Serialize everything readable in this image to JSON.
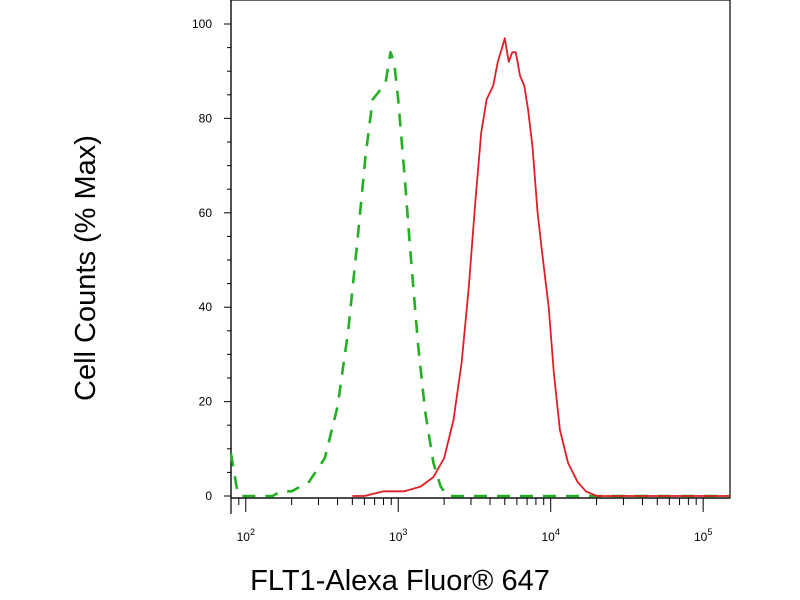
{
  "chart_data": {
    "type": "line",
    "title": "",
    "xlabel": "FLT1-Alexa Fluor® 647",
    "ylabel": "Cell Counts (% Max)",
    "x_scale": "log",
    "xlim": [
      80,
      150000
    ],
    "ylim": [
      0,
      100
    ],
    "grid": false,
    "y_ticks": [
      {
        "value": 0,
        "label": "0"
      },
      {
        "value": 20,
        "label": "20"
      },
      {
        "value": 40,
        "label": "40"
      },
      {
        "value": 60,
        "label": "60"
      },
      {
        "value": 80,
        "label": "80"
      },
      {
        "value": 100,
        "label": "100"
      }
    ],
    "x_ticks": [
      {
        "value": 100,
        "base": "10",
        "exp": "2"
      },
      {
        "value": 1000,
        "base": "10",
        "exp": "3"
      },
      {
        "value": 10000,
        "base": "10",
        "exp": "4"
      },
      {
        "value": 100000,
        "base": "10",
        "exp": "5"
      }
    ],
    "series": [
      {
        "color": "#22b022",
        "style": "dashed",
        "points": [
          [
            80,
            9
          ],
          [
            84,
            5
          ],
          [
            88,
            1
          ],
          [
            92,
            0
          ],
          [
            120,
            0
          ],
          [
            150,
            0
          ],
          [
            170,
            1
          ],
          [
            200,
            1
          ],
          [
            260,
            3
          ],
          [
            330,
            8
          ],
          [
            400,
            19
          ],
          [
            470,
            35
          ],
          [
            540,
            54
          ],
          [
            610,
            72
          ],
          [
            680,
            84
          ],
          [
            760,
            86
          ],
          [
            830,
            88
          ],
          [
            890,
            94
          ],
          [
            940,
            92
          ],
          [
            1000,
            84
          ],
          [
            1100,
            68
          ],
          [
            1200,
            52
          ],
          [
            1350,
            32
          ],
          [
            1500,
            18
          ],
          [
            1700,
            7
          ],
          [
            1900,
            2
          ],
          [
            2100,
            0
          ],
          [
            2600,
            0
          ],
          [
            5000,
            0
          ],
          [
            7000,
            0
          ],
          [
            150000,
            0
          ]
        ]
      },
      {
        "color": "#dd1f26",
        "style": "solid",
        "points": [
          [
            500,
            0
          ],
          [
            600,
            0
          ],
          [
            800,
            1
          ],
          [
            1100,
            1
          ],
          [
            1400,
            2
          ],
          [
            1700,
            4
          ],
          [
            2000,
            8
          ],
          [
            2300,
            16
          ],
          [
            2600,
            28
          ],
          [
            2900,
            44
          ],
          [
            3200,
            62
          ],
          [
            3500,
            77
          ],
          [
            3800,
            84
          ],
          [
            4200,
            87
          ],
          [
            4500,
            92
          ],
          [
            4800,
            95
          ],
          [
            5000,
            97
          ],
          [
            5300,
            92
          ],
          [
            5600,
            94
          ],
          [
            5900,
            94
          ],
          [
            6300,
            89
          ],
          [
            6700,
            87
          ],
          [
            7100,
            82
          ],
          [
            7600,
            74
          ],
          [
            8200,
            60
          ],
          [
            8900,
            50
          ],
          [
            9700,
            40
          ],
          [
            10500,
            26
          ],
          [
            11500,
            14
          ],
          [
            13000,
            7
          ],
          [
            15000,
            3
          ],
          [
            17000,
            1
          ],
          [
            20000,
            0
          ],
          [
            30000,
            0
          ],
          [
            150000,
            0
          ]
        ]
      }
    ]
  }
}
